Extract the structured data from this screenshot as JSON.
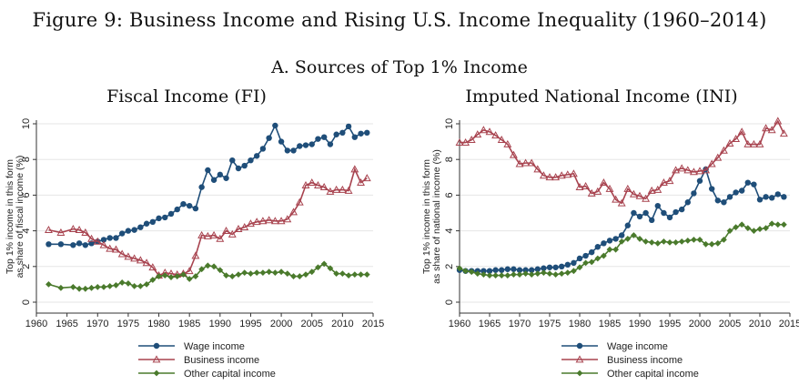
{
  "figure_title": "Figure 9: Business Income and Rising U.S. Income Inequality (1960–2014)",
  "panel_title": "A. Sources of Top 1% Income",
  "colors": {
    "wage": "#1f4e79",
    "business": "#a8434f",
    "other": "#4a7a2c"
  },
  "chart_data": [
    {
      "type": "line",
      "title": "Fiscal Income (FI)",
      "xlabel": "",
      "ylabel": [
        "Top 1% income in this form",
        "as share of fiscal income (%)"
      ],
      "xlim": [
        1960,
        2015
      ],
      "ylim": [
        0,
        10
      ],
      "xticks": [
        "1960",
        "1965",
        "1970",
        "1975",
        "1980",
        "1985",
        "1990",
        "1995",
        "2000",
        "2005",
        "2010",
        "2015"
      ],
      "yticks": [
        "0",
        "2",
        "4",
        "6",
        "8",
        "10"
      ],
      "grid": true,
      "legend": "bottom",
      "x": [
        1962,
        1964,
        1966,
        1967,
        1968,
        1969,
        1970,
        1971,
        1972,
        1973,
        1974,
        1975,
        1976,
        1977,
        1978,
        1979,
        1980,
        1981,
        1982,
        1983,
        1984,
        1985,
        1986,
        1987,
        1988,
        1989,
        1990,
        1991,
        1992,
        1993,
        1994,
        1995,
        1996,
        1997,
        1998,
        1999,
        2000,
        2001,
        2002,
        2003,
        2004,
        2005,
        2006,
        2007,
        2008,
        2009,
        2010,
        2011,
        2012,
        2013,
        2014
      ],
      "series": [
        {
          "name": "Wage income",
          "marker": "circle",
          "values": [
            3.25,
            3.25,
            3.2,
            3.3,
            3.2,
            3.3,
            3.4,
            3.5,
            3.6,
            3.6,
            3.85,
            4.0,
            4.05,
            4.2,
            4.4,
            4.5,
            4.7,
            4.75,
            4.95,
            5.2,
            5.5,
            5.4,
            5.25,
            6.45,
            7.4,
            6.85,
            7.15,
            6.95,
            7.95,
            7.5,
            7.65,
            7.95,
            8.2,
            8.6,
            9.2,
            9.9,
            9.0,
            8.5,
            8.5,
            8.75,
            8.8,
            8.85,
            9.15,
            9.25,
            8.85,
            9.4,
            9.5,
            9.85,
            9.25,
            9.45,
            9.5
          ]
        },
        {
          "name": "Business income",
          "marker": "triangle",
          "values": [
            4.05,
            3.9,
            4.1,
            4.05,
            3.9,
            3.55,
            3.4,
            3.2,
            3.0,
            2.95,
            2.7,
            2.55,
            2.45,
            2.35,
            2.2,
            1.95,
            1.5,
            1.65,
            1.6,
            1.55,
            1.6,
            1.75,
            2.6,
            3.75,
            3.7,
            3.75,
            3.55,
            4.0,
            3.8,
            4.1,
            4.2,
            4.4,
            4.5,
            4.55,
            4.6,
            4.55,
            4.55,
            4.65,
            5.05,
            5.6,
            6.55,
            6.7,
            6.55,
            6.45,
            6.2,
            6.3,
            6.3,
            6.25,
            7.45,
            6.7,
            6.95
          ]
        },
        {
          "name": "Other capital income",
          "marker": "diamond",
          "values": [
            1.0,
            0.8,
            0.85,
            0.75,
            0.75,
            0.8,
            0.85,
            0.85,
            0.9,
            0.95,
            1.1,
            1.05,
            0.9,
            0.9,
            1.0,
            1.25,
            1.45,
            1.5,
            1.4,
            1.45,
            1.55,
            1.3,
            1.45,
            1.85,
            2.05,
            2.0,
            1.8,
            1.5,
            1.45,
            1.55,
            1.65,
            1.6,
            1.65,
            1.65,
            1.7,
            1.65,
            1.7,
            1.6,
            1.45,
            1.45,
            1.55,
            1.7,
            1.95,
            2.15,
            1.9,
            1.6,
            1.6,
            1.5,
            1.55,
            1.55,
            1.55
          ]
        }
      ]
    },
    {
      "type": "line",
      "title": "Imputed National Income (INI)",
      "xlabel": "",
      "ylabel": [
        "Top 1% income in this form",
        "as share of national income (%)"
      ],
      "xlim": [
        1960,
        2015
      ],
      "ylim": [
        0,
        10
      ],
      "xticks": [
        "1960",
        "1965",
        "1970",
        "1975",
        "1980",
        "1985",
        "1990",
        "1995",
        "2000",
        "2005",
        "2010",
        "2015"
      ],
      "yticks": [
        "0",
        "2",
        "4",
        "6",
        "8",
        "10"
      ],
      "grid": true,
      "legend": "bottom",
      "x": [
        1960,
        1961,
        1962,
        1963,
        1964,
        1965,
        1966,
        1967,
        1968,
        1969,
        1970,
        1971,
        1972,
        1973,
        1974,
        1975,
        1976,
        1977,
        1978,
        1979,
        1980,
        1981,
        1982,
        1983,
        1984,
        1985,
        1986,
        1987,
        1988,
        1989,
        1990,
        1991,
        1992,
        1993,
        1994,
        1995,
        1996,
        1997,
        1998,
        1999,
        2000,
        2001,
        2002,
        2003,
        2004,
        2005,
        2006,
        2007,
        2008,
        2009,
        2010,
        2011,
        2012,
        2013,
        2014
      ],
      "series": [
        {
          "name": "Wage income",
          "marker": "circle",
          "values": [
            1.8,
            1.75,
            1.75,
            1.75,
            1.75,
            1.75,
            1.8,
            1.8,
            1.85,
            1.85,
            1.8,
            1.8,
            1.8,
            1.85,
            1.9,
            1.95,
            1.95,
            2.0,
            2.1,
            2.2,
            2.45,
            2.6,
            2.8,
            3.1,
            3.3,
            3.45,
            3.55,
            3.75,
            4.3,
            5.0,
            4.8,
            5.0,
            4.6,
            5.4,
            5.0,
            4.75,
            5.05,
            5.2,
            5.6,
            6.1,
            6.8,
            7.45,
            6.35,
            5.7,
            5.6,
            5.9,
            6.15,
            6.25,
            6.7,
            6.6,
            5.75,
            5.9,
            5.85,
            6.05,
            5.9
          ]
        },
        {
          "name": "Business income",
          "marker": "triangle",
          "values": [
            8.95,
            8.95,
            9.1,
            9.4,
            9.65,
            9.55,
            9.35,
            9.1,
            8.85,
            8.25,
            7.75,
            7.8,
            7.8,
            7.45,
            7.1,
            7.0,
            7.0,
            7.1,
            7.15,
            7.2,
            6.45,
            6.5,
            6.1,
            6.2,
            6.7,
            6.35,
            5.75,
            5.55,
            6.35,
            6.05,
            5.95,
            5.8,
            6.25,
            6.3,
            6.7,
            6.8,
            7.4,
            7.5,
            7.4,
            7.3,
            7.35,
            7.4,
            7.75,
            8.1,
            8.5,
            8.9,
            9.15,
            9.55,
            8.85,
            8.85,
            8.85,
            9.75,
            9.65,
            10.15,
            9.45
          ]
        },
        {
          "name": "Other capital income",
          "marker": "diamond",
          "values": [
            1.9,
            1.75,
            1.7,
            1.6,
            1.55,
            1.5,
            1.5,
            1.5,
            1.5,
            1.55,
            1.55,
            1.6,
            1.55,
            1.6,
            1.65,
            1.6,
            1.55,
            1.6,
            1.65,
            1.75,
            1.95,
            2.2,
            2.25,
            2.45,
            2.6,
            2.95,
            2.95,
            3.4,
            3.55,
            3.75,
            3.55,
            3.4,
            3.35,
            3.3,
            3.4,
            3.35,
            3.35,
            3.4,
            3.45,
            3.5,
            3.5,
            3.25,
            3.25,
            3.3,
            3.5,
            4.0,
            4.2,
            4.35,
            4.15,
            4.0,
            4.1,
            4.15,
            4.4,
            4.35,
            4.35
          ]
        }
      ]
    }
  ]
}
